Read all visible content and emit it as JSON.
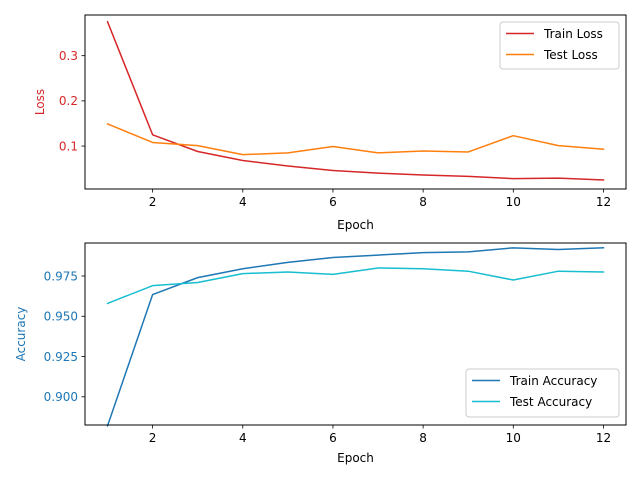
{
  "chart_data": [
    {
      "type": "line",
      "xlabel": "Epoch",
      "ylabel": "Loss",
      "ylabel_color": "#d62728",
      "xlim": [
        0.5,
        12.5
      ],
      "ylim": [
        0.005,
        0.39
      ],
      "xticks": [
        2,
        4,
        6,
        8,
        10,
        12
      ],
      "xtick_labels": [
        "2",
        "4",
        "6",
        "8",
        "10",
        "12"
      ],
      "yticks": [
        0.1,
        0.2,
        0.3
      ],
      "ytick_labels": [
        "0.1",
        "0.2",
        "0.3"
      ],
      "ytick_color": "#d62728",
      "legend_position": "top-right",
      "x": [
        1,
        2,
        3,
        4,
        5,
        6,
        7,
        8,
        9,
        10,
        11,
        12
      ],
      "series": [
        {
          "name": "Train Loss",
          "color": "#d62728",
          "values": [
            0.375,
            0.125,
            0.088,
            0.068,
            0.056,
            0.046,
            0.04,
            0.036,
            0.033,
            0.028,
            0.029,
            0.025
          ]
        },
        {
          "name": "Test Loss",
          "color": "#ff7f0e",
          "values": [
            0.149,
            0.108,
            0.101,
            0.081,
            0.085,
            0.099,
            0.085,
            0.089,
            0.087,
            0.123,
            0.101,
            0.093
          ]
        }
      ]
    },
    {
      "type": "line",
      "xlabel": "Epoch",
      "ylabel": "Accuracy",
      "ylabel_color": "#1f77b4",
      "xlim": [
        0.5,
        12.5
      ],
      "ylim": [
        0.8825,
        0.9955
      ],
      "xticks": [
        2,
        4,
        6,
        8,
        10,
        12
      ],
      "xtick_labels": [
        "2",
        "4",
        "6",
        "8",
        "10",
        "12"
      ],
      "yticks": [
        0.9,
        0.925,
        0.95,
        0.975
      ],
      "ytick_labels": [
        "0.900",
        "0.925",
        "0.950",
        "0.975"
      ],
      "ytick_color": "#1f77b4",
      "legend_position": "bottom-right",
      "x": [
        1,
        2,
        3,
        4,
        5,
        6,
        7,
        8,
        9,
        10,
        11,
        12
      ],
      "series": [
        {
          "name": "Train Accuracy",
          "color": "#1f77b4",
          "values": [
            0.882,
            0.9635,
            0.974,
            0.9795,
            0.9835,
            0.9865,
            0.988,
            0.9895,
            0.99,
            0.9925,
            0.9915,
            0.9925
          ]
        },
        {
          "name": "Test Accuracy",
          "color": "#17becf",
          "values": [
            0.958,
            0.969,
            0.971,
            0.9765,
            0.9775,
            0.976,
            0.98,
            0.9795,
            0.978,
            0.9725,
            0.978,
            0.9775
          ]
        }
      ]
    }
  ]
}
